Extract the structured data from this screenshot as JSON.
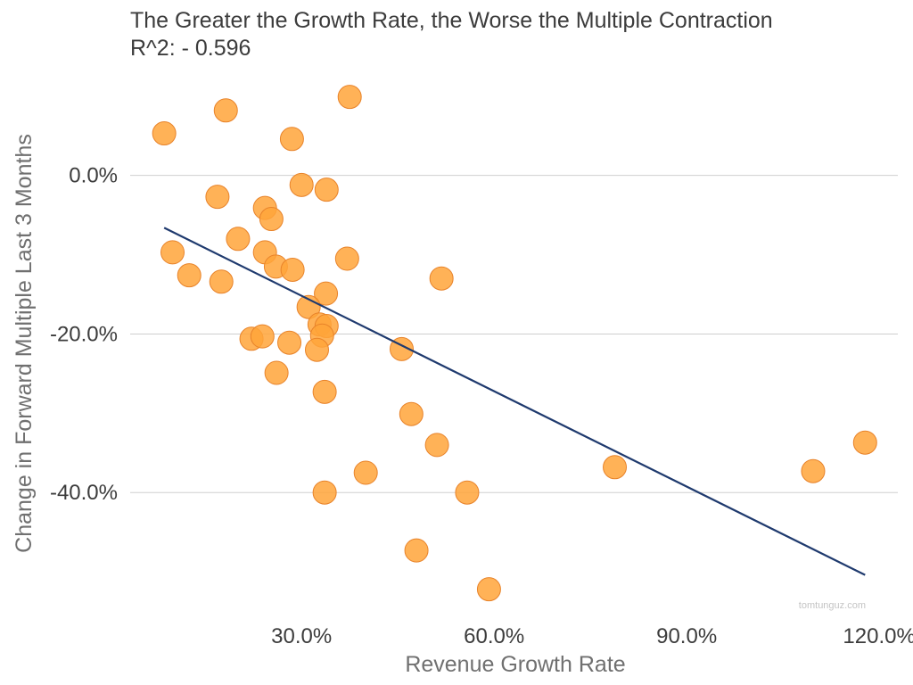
{
  "chart_data": {
    "type": "scatter",
    "title": "The Greater the Growth Rate, the Worse the Multiple Contraction",
    "subtitle": "R^2: - 0.596",
    "xlabel": "Revenue Growth Rate",
    "ylabel": "Change in Forward Multiple Last 3 Months",
    "xlim": [
      3.3,
      122.9
    ],
    "ylim": [
      -55.5,
      12.0
    ],
    "x_unit": "%",
    "y_unit": "%",
    "x_ticks": [
      30,
      60,
      90,
      120
    ],
    "x_tick_labels": [
      "30.0%",
      "60.0%",
      "90.0%",
      "120.0%"
    ],
    "y_ticks": [
      0,
      -20,
      -40
    ],
    "y_tick_labels": [
      "0.0%",
      "-20.0%",
      "-40.0%"
    ],
    "grid": "horizontal",
    "legend": "none",
    "watermark": "tomtunguz.com",
    "colors": {
      "point": "#FFA53A",
      "point_edge": "#E8832A",
      "trendline": "#1F3A6E",
      "grid": "#cfcfcf"
    },
    "points": [
      {
        "x": 8.6,
        "y": 5.3
      },
      {
        "x": 18.2,
        "y": 8.2
      },
      {
        "x": 28.5,
        "y": 4.6
      },
      {
        "x": 37.5,
        "y": 9.9
      },
      {
        "x": 16.9,
        "y": -2.7
      },
      {
        "x": 24.3,
        "y": -4.1
      },
      {
        "x": 25.3,
        "y": -5.5
      },
      {
        "x": 30.0,
        "y": -1.2
      },
      {
        "x": 33.9,
        "y": -1.8
      },
      {
        "x": 9.9,
        "y": -9.7
      },
      {
        "x": 12.5,
        "y": -12.6
      },
      {
        "x": 17.5,
        "y": -13.4
      },
      {
        "x": 20.1,
        "y": -8.0
      },
      {
        "x": 24.3,
        "y": -9.7
      },
      {
        "x": 26.0,
        "y": -11.5
      },
      {
        "x": 28.6,
        "y": -11.9
      },
      {
        "x": 37.1,
        "y": -10.5
      },
      {
        "x": 51.8,
        "y": -13.0
      },
      {
        "x": 33.8,
        "y": -14.9
      },
      {
        "x": 31.1,
        "y": -16.6
      },
      {
        "x": 32.8,
        "y": -18.8
      },
      {
        "x": 33.9,
        "y": -19.0
      },
      {
        "x": 33.2,
        "y": -20.2
      },
      {
        "x": 22.2,
        "y": -20.6
      },
      {
        "x": 23.9,
        "y": -20.3
      },
      {
        "x": 28.1,
        "y": -21.1
      },
      {
        "x": 32.4,
        "y": -22.0
      },
      {
        "x": 45.6,
        "y": -21.9
      },
      {
        "x": 26.1,
        "y": -24.9
      },
      {
        "x": 33.6,
        "y": -27.3
      },
      {
        "x": 47.1,
        "y": -30.1
      },
      {
        "x": 51.1,
        "y": -34.0
      },
      {
        "x": 40.0,
        "y": -37.5
      },
      {
        "x": 33.6,
        "y": -40.0
      },
      {
        "x": 55.8,
        "y": -40.0
      },
      {
        "x": 47.9,
        "y": -47.3
      },
      {
        "x": 59.2,
        "y": -52.2
      },
      {
        "x": 78.8,
        "y": -36.8
      },
      {
        "x": 109.7,
        "y": -37.3
      },
      {
        "x": 117.8,
        "y": -33.7
      }
    ],
    "trendline": {
      "x": [
        8.6,
        117.8
      ],
      "y": [
        -6.6,
        -50.4
      ]
    }
  }
}
